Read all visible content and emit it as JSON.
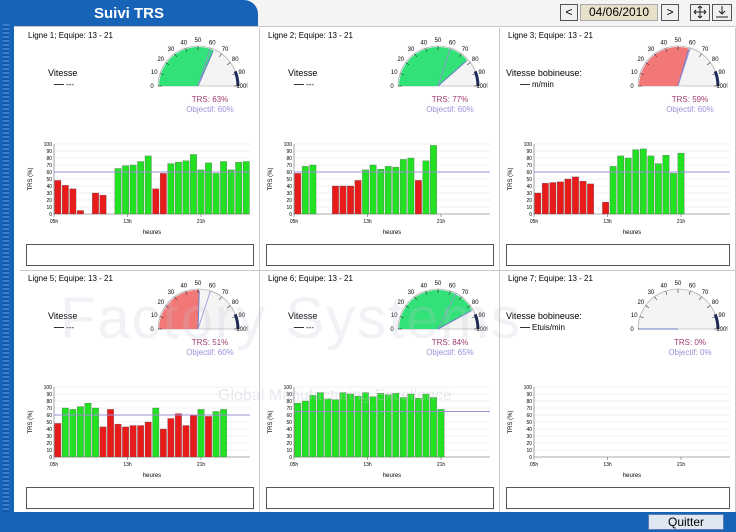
{
  "app": {
    "title": "Suivi TRS",
    "date": "04/06/2010",
    "prev_label": "<",
    "next_label": ">",
    "quit_label": "Quitter",
    "watermark": "Factory Systems",
    "watermark_sub": "Global Manufacturing Excellence"
  },
  "colors": {
    "brand": "#1763b8",
    "bar_good": "#22e022",
    "bar_bad": "#e81b1b",
    "objective_line": "#9b8fd8",
    "gauge_red": "#f26a6a",
    "gauge_green": "#1de06a"
  },
  "panels": [
    {
      "header": "Ligne   1; Equipe: 13 - 21",
      "speed_label": "Vitesse",
      "speed_unit": "---",
      "trs": "TRS: 63%",
      "objective": "Objectif: 60%",
      "gauge_value": 63,
      "gauge_color": "green",
      "chart_data": {
        "type": "bar",
        "ylabel": "TRS (%)",
        "xlabel": "heures",
        "yticks": [
          "0",
          "10",
          "20",
          "30",
          "40",
          "50",
          "60",
          "70",
          "80",
          "90",
          "100"
        ],
        "xticks": [
          "05h",
          "13h",
          "21h"
        ],
        "ylim": [
          0,
          100
        ],
        "objective": 60,
        "values": [
          48,
          41,
          36,
          5,
          0,
          30,
          27,
          0,
          65,
          69,
          70,
          75,
          83,
          36,
          58,
          72,
          74,
          76,
          85,
          63,
          73,
          58,
          75,
          63,
          74,
          75
        ],
        "good": [
          false,
          false,
          false,
          false,
          false,
          false,
          false,
          false,
          true,
          true,
          true,
          true,
          true,
          false,
          false,
          true,
          true,
          true,
          true,
          true,
          true,
          true,
          true,
          true,
          true,
          true
        ]
      }
    },
    {
      "header": "Ligne   2; Equipe: 13 - 21",
      "speed_label": "Vitesse",
      "speed_unit": "---",
      "trs": "TRS: 77%",
      "objective": "Objectif: 60%",
      "gauge_value": 77,
      "gauge_color": "green",
      "chart_data": {
        "type": "bar",
        "ylabel": "TRS (%)",
        "xlabel": "heures",
        "yticks": [
          "0",
          "10",
          "20",
          "30",
          "40",
          "50",
          "60",
          "70",
          "80",
          "90",
          "100"
        ],
        "xticks": [
          "05h",
          "13h",
          "21h"
        ],
        "ylim": [
          0,
          100
        ],
        "objective": 60,
        "values": [
          58,
          68,
          70,
          0,
          0,
          40,
          40,
          40,
          48,
          63,
          70,
          64,
          68,
          67,
          78,
          80,
          48,
          76,
          98
        ],
        "good": [
          false,
          true,
          true,
          false,
          false,
          false,
          false,
          false,
          false,
          true,
          true,
          true,
          true,
          true,
          true,
          true,
          false,
          true,
          true
        ]
      }
    },
    {
      "header": "Ligne   3; Equipe: 13 - 21",
      "speed_label": "Vitesse bobineuse:",
      "speed_unit": "m/min",
      "trs": "TRS: 59%",
      "objective": "Objectif: 60%",
      "gauge_value": 59,
      "gauge_color": "red",
      "chart_data": {
        "type": "bar",
        "ylabel": "TRS (%)",
        "xlabel": "heures",
        "yticks": [
          "0",
          "10",
          "20",
          "30",
          "40",
          "50",
          "60",
          "70",
          "80",
          "90",
          "100"
        ],
        "xticks": [
          "05h",
          "13h",
          "21h"
        ],
        "ylim": [
          0,
          100
        ],
        "objective": 60,
        "values": [
          30,
          44,
          45,
          46,
          50,
          53,
          47,
          43,
          0,
          17,
          68,
          83,
          80,
          92,
          93,
          83,
          72,
          84,
          58,
          87
        ],
        "good": [
          false,
          false,
          false,
          false,
          false,
          false,
          false,
          false,
          false,
          false,
          true,
          true,
          true,
          true,
          true,
          true,
          true,
          true,
          true,
          true
        ]
      }
    },
    {
      "header": "Ligne   5; Equipe: 13 - 21",
      "speed_label": "Vitesse",
      "speed_unit": "---",
      "trs": "TRS: 51%",
      "objective": "Objectif: 60%",
      "gauge_value": 51,
      "gauge_color": "red",
      "chart_data": {
        "type": "bar",
        "ylabel": "TRS (%)",
        "xlabel": "heures",
        "yticks": [
          "0",
          "10",
          "20",
          "30",
          "40",
          "50",
          "60",
          "70",
          "80",
          "90",
          "100"
        ],
        "xticks": [
          "05h",
          "13h",
          "21h"
        ],
        "ylim": [
          0,
          100
        ],
        "objective": 60,
        "values": [
          48,
          70,
          68,
          72,
          77,
          70,
          43,
          68,
          47,
          43,
          45,
          45,
          50,
          70,
          40,
          55,
          62,
          45,
          60,
          68,
          58,
          65,
          68
        ],
        "good": [
          false,
          true,
          true,
          true,
          true,
          true,
          false,
          false,
          false,
          false,
          false,
          false,
          false,
          true,
          false,
          false,
          false,
          false,
          false,
          true,
          false,
          true,
          true
        ]
      }
    },
    {
      "header": "Ligne   6; Equipe: 13 - 21",
      "speed_label": "Vitesse",
      "speed_unit": "---",
      "trs": "TRS: 84%",
      "objective": "Objectif: 65%",
      "gauge_value": 84,
      "gauge_color": "green",
      "chart_data": {
        "type": "bar",
        "ylabel": "TRS (%)",
        "xlabel": "heures",
        "yticks": [
          "0",
          "10",
          "20",
          "30",
          "40",
          "50",
          "60",
          "70",
          "80",
          "90",
          "100"
        ],
        "xticks": [
          "05h",
          "13h",
          "21h"
        ],
        "ylim": [
          0,
          100
        ],
        "objective": 65,
        "values": [
          77,
          80,
          88,
          92,
          83,
          82,
          92,
          90,
          87,
          92,
          86,
          91,
          89,
          91,
          85,
          90,
          84,
          90,
          85,
          68
        ],
        "good": [
          true,
          true,
          true,
          true,
          true,
          true,
          true,
          true,
          true,
          true,
          true,
          true,
          true,
          true,
          true,
          true,
          true,
          true,
          true,
          true
        ]
      }
    },
    {
      "header": "Ligne   7; Equipe: 13 - 21",
      "speed_label": "Vitesse bobineuse:",
      "speed_unit": "Etuis/min",
      "trs": "TRS: 0%",
      "objective": "Objectif: 0%",
      "gauge_value": 0,
      "gauge_color": "none",
      "chart_data": {
        "type": "bar",
        "ylabel": "TRS (%)",
        "xlabel": "heures",
        "yticks": [
          "0",
          "10",
          "20",
          "30",
          "40",
          "50",
          "60",
          "70",
          "80",
          "90",
          "100"
        ],
        "xticks": [
          "05h",
          "13h",
          "21h"
        ],
        "ylim": [
          0,
          100
        ],
        "objective": 0,
        "values": [],
        "good": []
      }
    }
  ],
  "gauge_ticks": [
    "0",
    "10",
    "20",
    "30",
    "40",
    "50",
    "60",
    "70",
    "80",
    "90",
    "100%"
  ]
}
